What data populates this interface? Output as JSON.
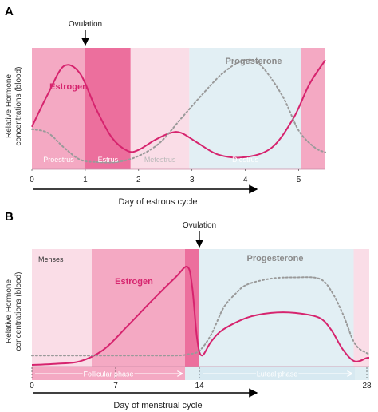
{
  "chart_data": [
    {
      "type": "line",
      "panel_letter": "A",
      "ylabel_lines": [
        "Relative Hormone",
        "concentrations (blood)"
      ],
      "xlabel": "Day of estrous cycle",
      "xlim": [
        0,
        5.5
      ],
      "ticks": [
        0,
        1,
        2,
        3,
        4,
        5
      ],
      "annotation": "Ovulation",
      "annotation_x": 1,
      "phases": [
        {
          "label": "Proestrus",
          "start": 0,
          "end": 1,
          "color": "#f4a9c3",
          "text_color": "#ffffff"
        },
        {
          "label": "Estrus",
          "start": 1,
          "end": 1.85,
          "color": "#ec6f9d",
          "text_color": "#ffffff"
        },
        {
          "label": "Metestrus",
          "start": 1.85,
          "end": 2.95,
          "color": "#fadde7",
          "text_color": "#b8b8b8"
        },
        {
          "label": "Diestrus",
          "start": 2.95,
          "end": 5.05,
          "color": "#e2eff4",
          "text_color": "#ffffff"
        },
        {
          "label": "",
          "start": 5.05,
          "end": 5.5,
          "color": "#f4a9c3",
          "text_color": "#ffffff"
        }
      ],
      "series": [
        {
          "name": "Estrogen",
          "style": "solid",
          "color": "#d6246e",
          "x": [
            0,
            0.3,
            0.6,
            0.9,
            1.2,
            1.5,
            1.8,
            2.0,
            2.3,
            2.6,
            2.8,
            3.1,
            3.5,
            4.0,
            4.5,
            4.9,
            5.2,
            5.5
          ],
          "y": [
            0.35,
            0.62,
            0.85,
            0.79,
            0.5,
            0.26,
            0.15,
            0.16,
            0.24,
            0.3,
            0.3,
            0.22,
            0.12,
            0.1,
            0.18,
            0.42,
            0.7,
            0.9
          ]
        },
        {
          "name": "Progesterone",
          "style": "dotted",
          "color": "#9a9a9a",
          "x": [
            0,
            0.3,
            0.6,
            0.9,
            1.2,
            1.6,
            2.0,
            2.4,
            2.8,
            3.2,
            3.6,
            4.0,
            4.3,
            4.7,
            5.0,
            5.3,
            5.5
          ],
          "y": [
            0.33,
            0.3,
            0.18,
            0.08,
            0.06,
            0.06,
            0.11,
            0.22,
            0.42,
            0.62,
            0.8,
            0.9,
            0.85,
            0.6,
            0.32,
            0.18,
            0.14
          ]
        }
      ],
      "ylim": [
        0,
        1
      ]
    },
    {
      "type": "line",
      "panel_letter": "B",
      "ylabel_lines": [
        "Relative Hormone",
        "concentrations (blood)"
      ],
      "xlabel": "Day of menstrual cycle",
      "xlim": [
        0,
        28.2
      ],
      "ticks": [
        0,
        7,
        14,
        28
      ],
      "annotation": "Ovulation",
      "annotation_x": 14,
      "phases": [
        {
          "label": "Menses",
          "start": 0,
          "end": 5,
          "color": "#fadde7",
          "text_color": "#333333"
        },
        {
          "label": "",
          "start": 5,
          "end": 12.8,
          "color": "#f4a9c3",
          "text_color": "#ffffff"
        },
        {
          "label": "",
          "start": 12.8,
          "end": 14,
          "color": "#ec6f9d",
          "text_color": "#ffffff"
        },
        {
          "label": "",
          "start": 14,
          "end": 26.9,
          "color": "#e2eff4",
          "text_color": "#ffffff"
        },
        {
          "label": "",
          "start": 26.9,
          "end": 28.2,
          "color": "#fadde7",
          "text_color": "#ffffff"
        }
      ],
      "phase_arrows": [
        {
          "label": "Follicular phase",
          "start": 0,
          "end": 12.8
        },
        {
          "label": "Luteal phase",
          "start": 14,
          "end": 27
        }
      ],
      "series": [
        {
          "name": "Estrogen",
          "style": "solid",
          "color": "#d6246e",
          "x": [
            0,
            2,
            4,
            6,
            8,
            10,
            12,
            13,
            13.4,
            13.8,
            14.2,
            15,
            16,
            18,
            20,
            22,
            24,
            25,
            26,
            27,
            28,
            28.2
          ],
          "y": [
            0.02,
            0.03,
            0.05,
            0.15,
            0.35,
            0.56,
            0.76,
            0.85,
            0.68,
            0.25,
            0.1,
            0.22,
            0.32,
            0.42,
            0.46,
            0.46,
            0.42,
            0.32,
            0.15,
            0.05,
            0.08,
            0.08
          ]
        },
        {
          "name": "Progesterone",
          "style": "dotted",
          "color": "#9a9a9a",
          "x": [
            0,
            4,
            8,
            12,
            13,
            14,
            15,
            16,
            17,
            18,
            20,
            22,
            24,
            25,
            26,
            27,
            28,
            28.2
          ],
          "y": [
            0.1,
            0.1,
            0.1,
            0.1,
            0.11,
            0.14,
            0.28,
            0.5,
            0.62,
            0.7,
            0.75,
            0.76,
            0.75,
            0.65,
            0.45,
            0.2,
            0.12,
            0.12
          ]
        }
      ],
      "ylim": [
        0,
        1
      ]
    }
  ]
}
